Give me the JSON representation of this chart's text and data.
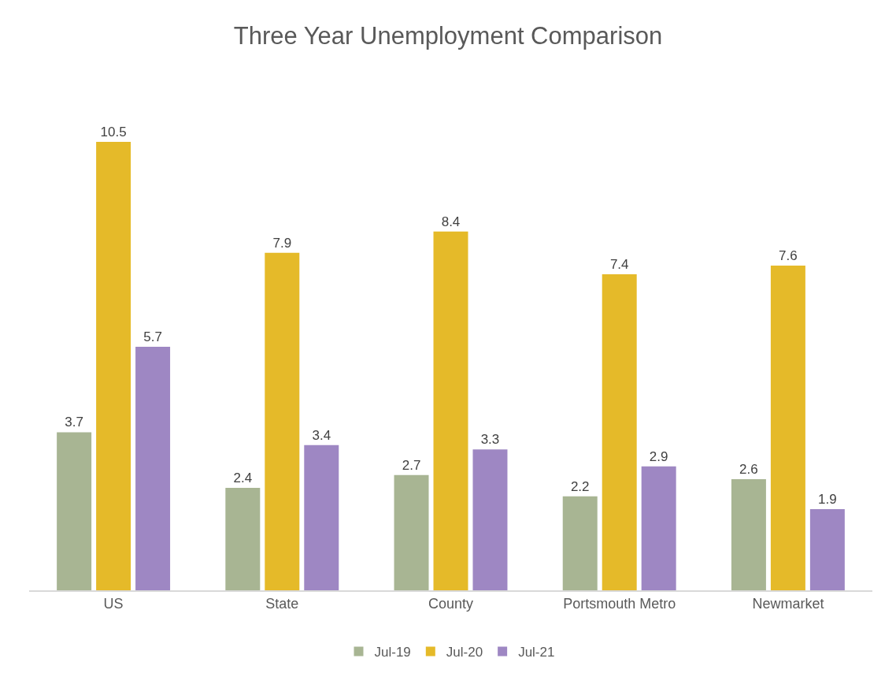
{
  "chart_data": {
    "type": "bar",
    "title": "Three Year Unemployment Comparison",
    "categories": [
      "US",
      "State",
      "County",
      "Portsmouth Metro",
      "Newmarket"
    ],
    "series": [
      {
        "name": "Jul-19",
        "color": "#a8b593",
        "values": [
          3.7,
          2.4,
          2.7,
          2.2,
          2.6
        ]
      },
      {
        "name": "Jul-20",
        "color": "#e5ba29",
        "values": [
          10.5,
          7.9,
          8.4,
          7.4,
          7.6
        ]
      },
      {
        "name": "Jul-21",
        "color": "#9e87c3",
        "values": [
          5.7,
          3.4,
          3.3,
          2.9,
          1.9
        ]
      }
    ],
    "data_labels": true,
    "legend": "bottom",
    "tick_labels": "x"
  }
}
